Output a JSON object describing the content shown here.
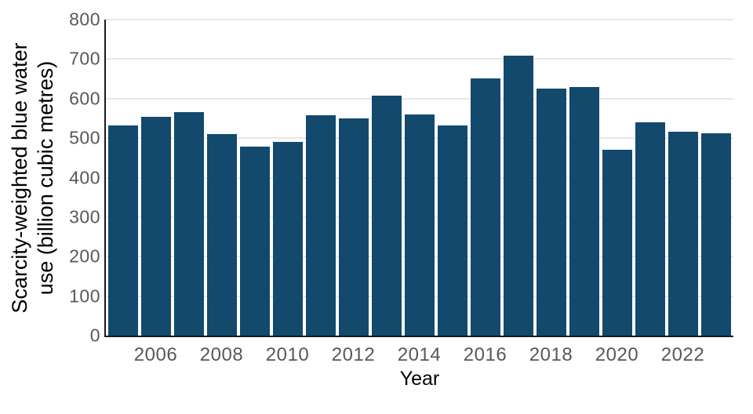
{
  "chart_data": {
    "type": "bar",
    "title": "",
    "xlabel": "Year",
    "ylabel": "Scarcity-weighted blue water use (billion cubic metres)",
    "ylabel_lines": [
      "Scarcity-weighted blue water",
      "use (billion cubic metres)"
    ],
    "categories": [
      2005,
      2006,
      2007,
      2008,
      2009,
      2010,
      2011,
      2012,
      2013,
      2014,
      2015,
      2016,
      2017,
      2018,
      2019,
      2020,
      2021,
      2022,
      2023
    ],
    "values": [
      533,
      554,
      566,
      510,
      479,
      491,
      558,
      550,
      607,
      559,
      533,
      652,
      708,
      626,
      630,
      471,
      539,
      517,
      513
    ],
    "ylim": [
      0,
      800
    ],
    "yticks": [
      0,
      100,
      200,
      300,
      400,
      500,
      600,
      700,
      800
    ],
    "xticks": [
      2006,
      2008,
      2010,
      2012,
      2014,
      2016,
      2018,
      2020,
      2022
    ],
    "grid": true,
    "legend": "none",
    "colors": {
      "bar": "#12496d",
      "grid": "#e8e8e8",
      "spine": "#1a1a1a",
      "tick_label": "#58585b",
      "axis_label": "#000000"
    }
  }
}
